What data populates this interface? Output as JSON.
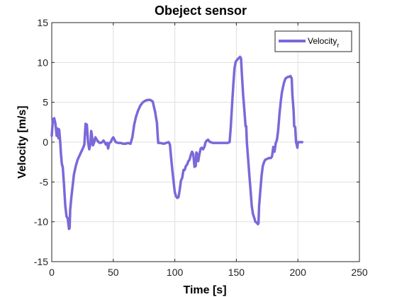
{
  "chart_data": {
    "type": "line",
    "title": "Obeject sensor",
    "xlabel": "Time [s]",
    "ylabel": "Velocity [m/s]",
    "xlim": [
      0,
      250
    ],
    "ylim": [
      -15,
      15
    ],
    "xticks": [
      0,
      50,
      100,
      150,
      200,
      250
    ],
    "yticks": [
      -15,
      -10,
      -5,
      0,
      5,
      10,
      15
    ],
    "grid": true,
    "legend_position": "top-right",
    "legend": {
      "text": "Velocity",
      "subscript": "r"
    },
    "series": [
      {
        "name": "Velocity_r",
        "color": "#7B68D9",
        "points": [
          [
            0,
            0.8
          ],
          [
            1,
            2.9
          ],
          [
            2,
            3.0
          ],
          [
            3,
            2.3
          ],
          [
            4,
            0.8
          ],
          [
            4.8,
            1.7
          ],
          [
            5.4,
            0.5
          ],
          [
            6,
            1.6
          ],
          [
            6.8,
            0.2
          ],
          [
            7.5,
            -1.5
          ],
          [
            8.2,
            -2.7
          ],
          [
            9,
            -3.2
          ],
          [
            10,
            -5.5
          ],
          [
            11,
            -8.0
          ],
          [
            12,
            -9.3
          ],
          [
            13,
            -9.6
          ],
          [
            14,
            -10.9
          ],
          [
            14.5,
            -10.8
          ],
          [
            15,
            -8.5
          ],
          [
            16,
            -6.8
          ],
          [
            17,
            -5.5
          ],
          [
            18,
            -4.1
          ],
          [
            19.5,
            -3.0
          ],
          [
            21,
            -2.2
          ],
          [
            22.5,
            -1.7
          ],
          [
            24,
            -1.2
          ],
          [
            25.5,
            -0.7
          ],
          [
            26.5,
            -0.3
          ],
          [
            27.5,
            2.3
          ],
          [
            28.5,
            2.2
          ],
          [
            29.5,
            0.0
          ],
          [
            30.5,
            -0.9
          ],
          [
            31.5,
            -0.2
          ],
          [
            32,
            1.4
          ],
          [
            32.5,
            1.0
          ],
          [
            33.5,
            -0.4
          ],
          [
            34.5,
            0.0
          ],
          [
            35.5,
            0.6
          ],
          [
            36.5,
            0.3
          ],
          [
            38,
            0.0
          ],
          [
            39.5,
            -0.1
          ],
          [
            41,
            0.0
          ],
          [
            42,
            0.2
          ],
          [
            43,
            0.0
          ],
          [
            44,
            -0.3
          ],
          [
            45,
            -0.1
          ],
          [
            45.8,
            -0.8
          ],
          [
            46.8,
            -0.1
          ],
          [
            48,
            0.0
          ],
          [
            49,
            0.4
          ],
          [
            50,
            0.6
          ],
          [
            51,
            0.3
          ],
          [
            52,
            0.0
          ],
          [
            54,
            -0.1
          ],
          [
            56,
            -0.1
          ],
          [
            58,
            -0.2
          ],
          [
            60,
            -0.2
          ],
          [
            62,
            -0.1
          ],
          [
            64,
            -0.2
          ],
          [
            65.5,
            0.6
          ],
          [
            67,
            2.2
          ],
          [
            68.5,
            3.2
          ],
          [
            70,
            3.9
          ],
          [
            72,
            4.6
          ],
          [
            74,
            5.0
          ],
          [
            76,
            5.2
          ],
          [
            78,
            5.3
          ],
          [
            80,
            5.3
          ],
          [
            82,
            5.1
          ],
          [
            82.5,
            4.8
          ],
          [
            84,
            3.8
          ],
          [
            85.5,
            2.4
          ],
          [
            86,
            1.0
          ],
          [
            86.5,
            -0.1
          ],
          [
            88,
            -0.1
          ],
          [
            91,
            -0.2
          ],
          [
            93,
            -0.1
          ],
          [
            95,
            0.0
          ],
          [
            96,
            -0.3
          ],
          [
            97,
            -2.0
          ],
          [
            98,
            -3.5
          ],
          [
            99,
            -5.0
          ],
          [
            100,
            -6.3
          ],
          [
            101,
            -6.8
          ],
          [
            102,
            -7.0
          ],
          [
            103,
            -6.9
          ],
          [
            104,
            -6.0
          ],
          [
            105,
            -4.8
          ],
          [
            106,
            -4.5
          ],
          [
            107,
            -3.5
          ],
          [
            108,
            -3.5
          ],
          [
            109,
            -3.0
          ],
          [
            110,
            -2.8
          ],
          [
            111,
            -2.4
          ],
          [
            112,
            -2.2
          ],
          [
            113,
            -1.6
          ],
          [
            114,
            -1.2
          ],
          [
            115,
            -1.5
          ],
          [
            116,
            -3.1
          ],
          [
            117,
            -3.0
          ],
          [
            117.5,
            -1.3
          ],
          [
            118,
            -1.4
          ],
          [
            119,
            -2.4
          ],
          [
            120,
            -1.5
          ],
          [
            121,
            -0.8
          ],
          [
            122,
            -0.7
          ],
          [
            123,
            -0.9
          ],
          [
            124,
            -0.6
          ],
          [
            125,
            0.0
          ],
          [
            126,
            0.2
          ],
          [
            127,
            0.3
          ],
          [
            128,
            0.1
          ],
          [
            129,
            0.0
          ],
          [
            131,
            -0.1
          ],
          [
            133,
            -0.1
          ],
          [
            135,
            -0.1
          ],
          [
            137,
            -0.1
          ],
          [
            139,
            -0.1
          ],
          [
            141,
            -0.1
          ],
          [
            143,
            -0.1
          ],
          [
            144.5,
            0.0
          ],
          [
            145.5,
            2.0
          ],
          [
            146.5,
            4.6
          ],
          [
            147.5,
            7.2
          ],
          [
            148.5,
            9.3
          ],
          [
            149.5,
            10.1
          ],
          [
            150.5,
            10.3
          ],
          [
            151.5,
            10.5
          ],
          [
            152.5,
            10.6
          ],
          [
            153,
            10.7
          ],
          [
            153.8,
            10.5
          ],
          [
            154.5,
            8.5
          ],
          [
            155.5,
            6.0
          ],
          [
            156.5,
            4.0
          ],
          [
            157.5,
            2.0
          ],
          [
            158,
            2.0
          ],
          [
            158.5,
            0.0
          ],
          [
            159.5,
            -2.0
          ],
          [
            160.5,
            -4.0
          ],
          [
            161.5,
            -6.0
          ],
          [
            162.5,
            -8.0
          ],
          [
            163.5,
            -9.0
          ],
          [
            164.5,
            -9.5
          ],
          [
            165.5,
            -10.0
          ],
          [
            166.5,
            -10.1
          ],
          [
            167.5,
            -10.3
          ],
          [
            168,
            -10.2
          ],
          [
            168.5,
            -8.0
          ],
          [
            169.5,
            -6.0
          ],
          [
            170.5,
            -4.2
          ],
          [
            171.5,
            -3.0
          ],
          [
            172.5,
            -2.5
          ],
          [
            173.5,
            -2.2
          ],
          [
            175,
            -2.1
          ],
          [
            176.5,
            -2.0
          ],
          [
            178,
            -2.0
          ],
          [
            179,
            -1.8
          ],
          [
            180,
            -0.6
          ],
          [
            181,
            -1.2
          ],
          [
            182,
            -0.1
          ],
          [
            183,
            0.3
          ],
          [
            184,
            1.5
          ],
          [
            185,
            3.5
          ],
          [
            186,
            5.0
          ],
          [
            187,
            6.2
          ],
          [
            188,
            7.0
          ],
          [
            189,
            7.6
          ],
          [
            190,
            8.0
          ],
          [
            191,
            8.1
          ],
          [
            192,
            8.2
          ],
          [
            193,
            8.2
          ],
          [
            194,
            8.3
          ],
          [
            195,
            8.0
          ],
          [
            195.5,
            6.0
          ],
          [
            196.5,
            4.0
          ],
          [
            197,
            2.0
          ],
          [
            197.8,
            1.9
          ],
          [
            198.5,
            0.0
          ],
          [
            199,
            -0.3
          ],
          [
            199.6,
            -0.7
          ],
          [
            200,
            0.0
          ],
          [
            201,
            0.0
          ],
          [
            202,
            0.0
          ],
          [
            203.5,
            0.0
          ]
        ]
      }
    ]
  }
}
